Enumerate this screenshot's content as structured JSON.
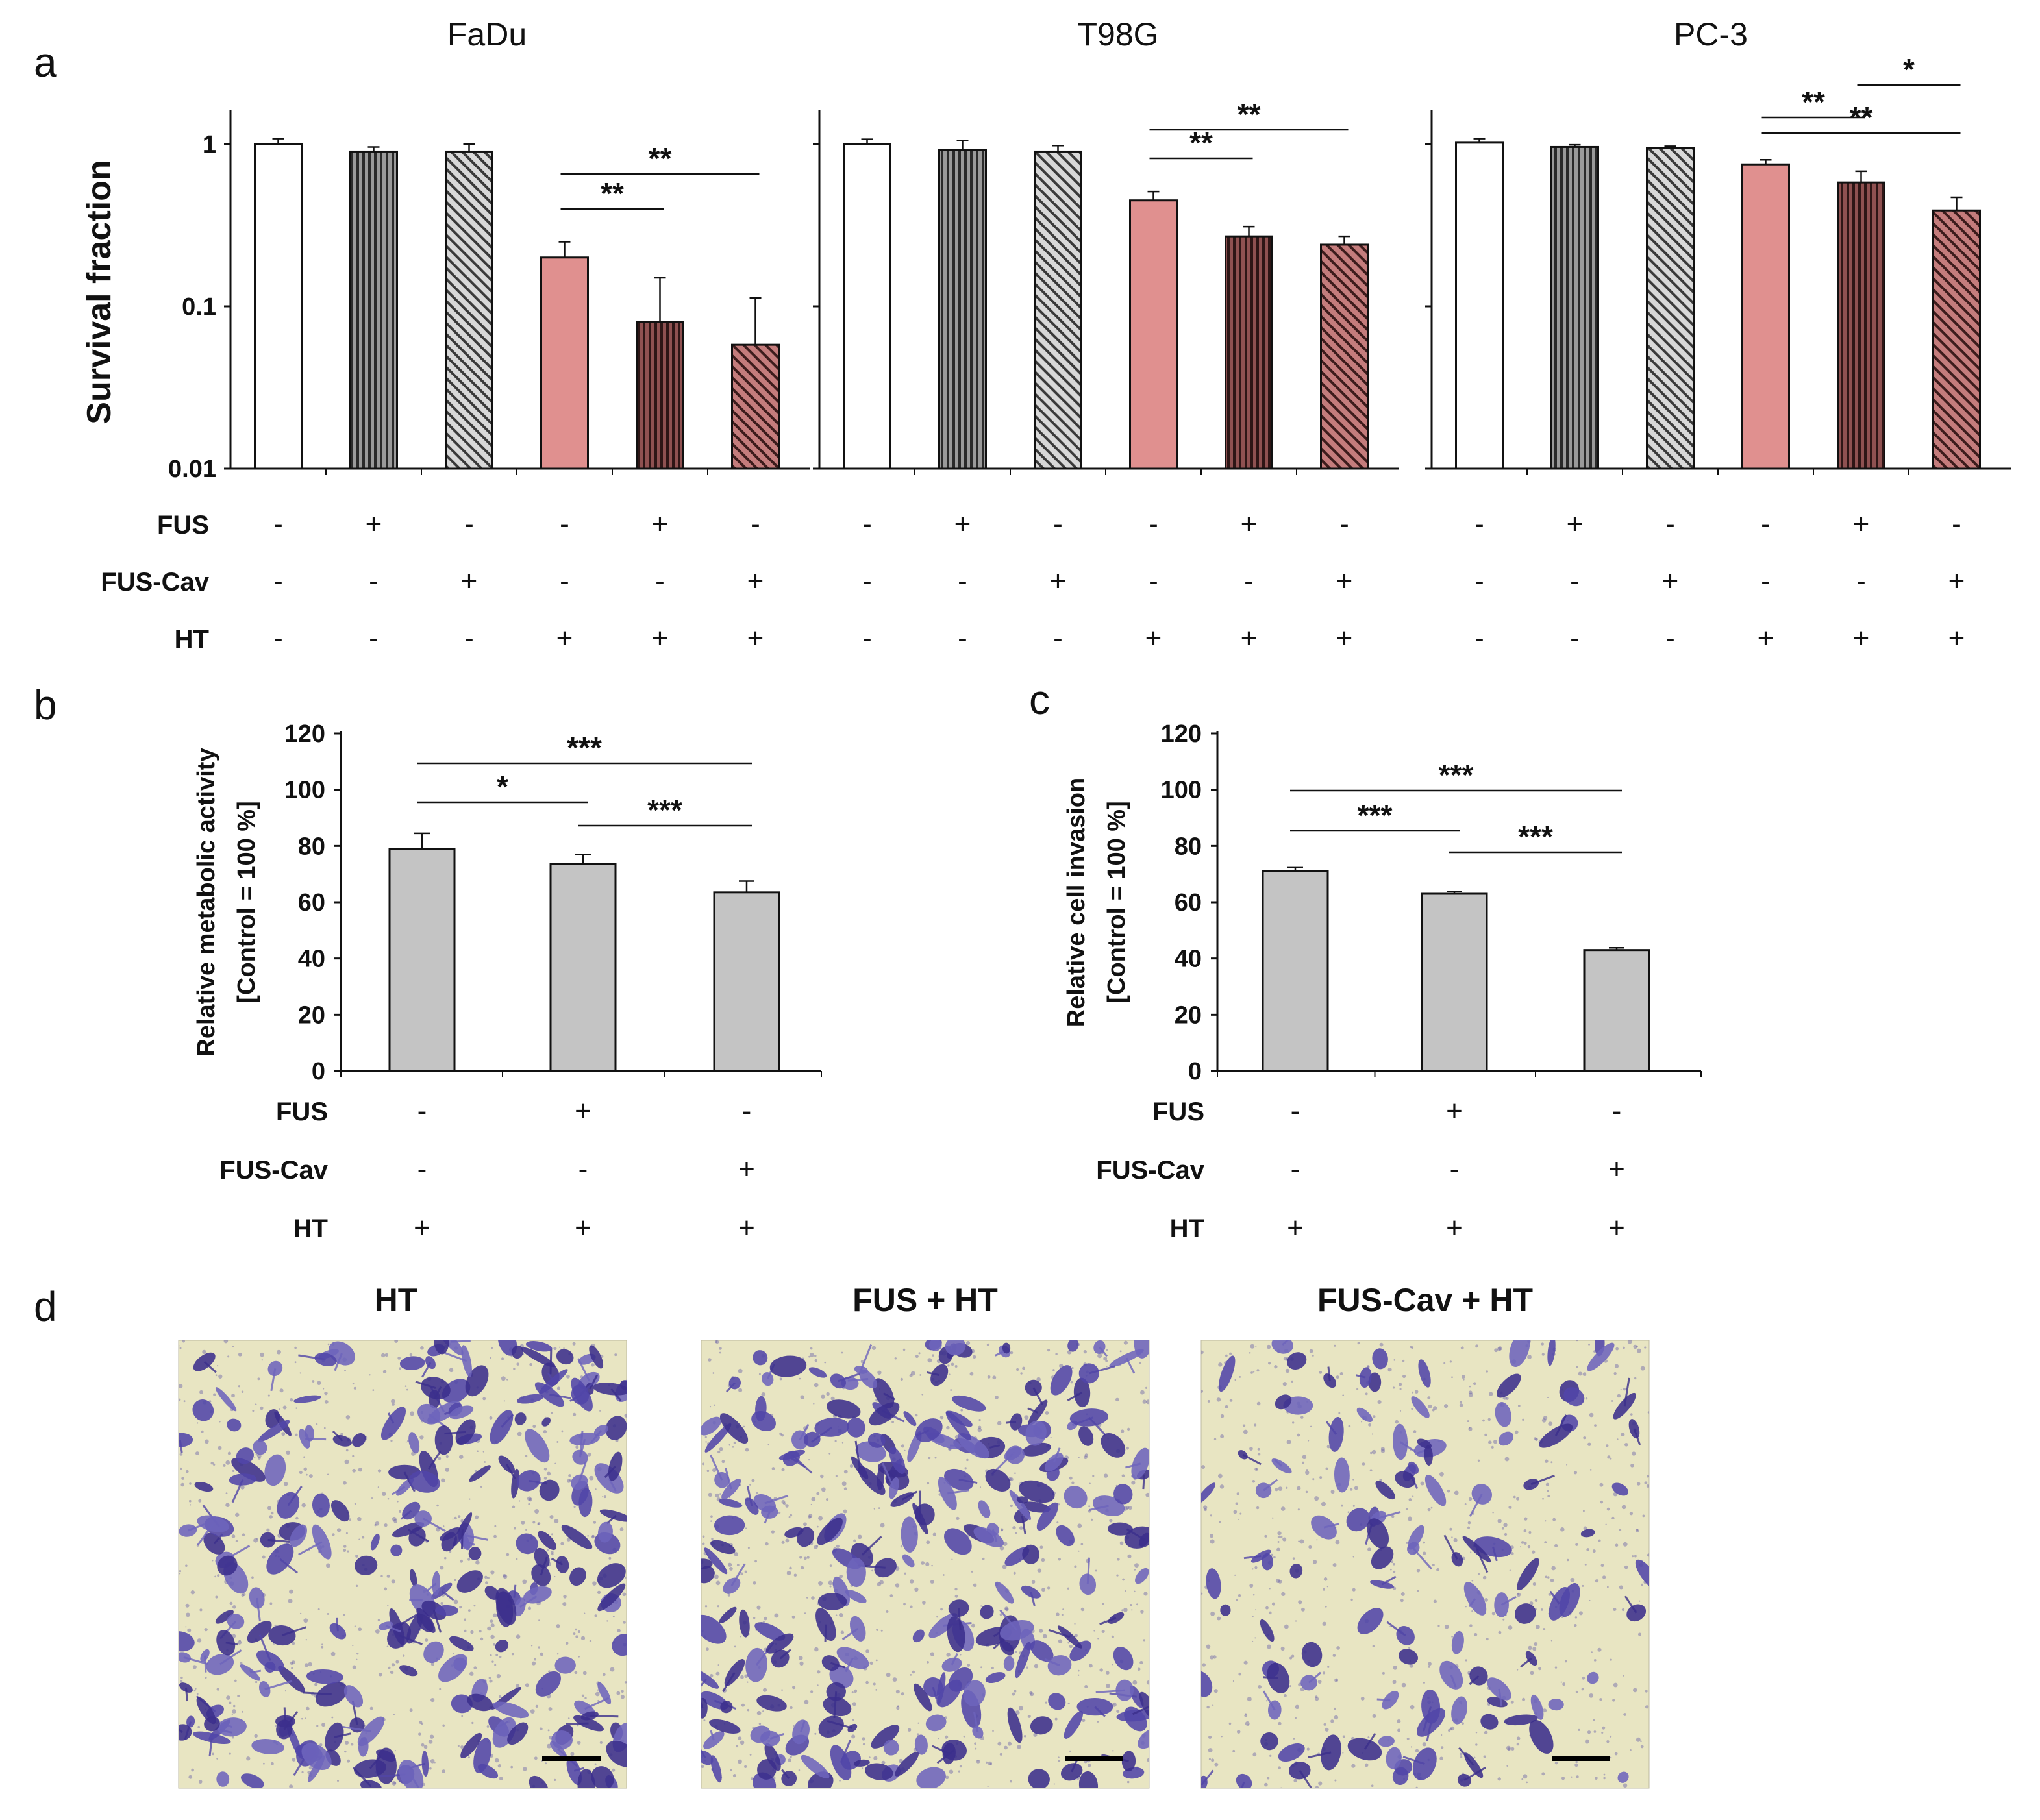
{
  "panel_labels": {
    "a": "a",
    "b": "b",
    "c": "c",
    "d": "d"
  },
  "condition_labels": {
    "fus": "FUS",
    "fus_cav": "FUS-Cav",
    "ht": "HT"
  },
  "colors": {
    "white_bar": "#ffffff",
    "gray_bar": "#c4c4c4",
    "dark_gray_bar": "#9c9c9c",
    "pink_bar": "#e0908f",
    "maroon_bar": "#6e3a3a",
    "pink_hatch_bar": "#b36868",
    "cell_stain": "#4a3fa0",
    "background_photo": "#e9e6c4"
  },
  "chart_data": [
    {
      "id": "a-fadu",
      "type": "bar",
      "title": "FaDu",
      "ylabel": "Survival fraction",
      "yscale": "log",
      "ylim": [
        0.01,
        1.5
      ],
      "yticks": [
        "1",
        "0.1",
        "0.01"
      ],
      "categories": [
        "1",
        "2",
        "3",
        "4",
        "5",
        "6"
      ],
      "values": [
        1.0,
        0.9,
        0.9,
        0.2,
        0.08,
        0.058
      ],
      "errors": [
        0.08,
        0.06,
        0.1,
        0.05,
        0.07,
        0.055
      ],
      "styles": [
        "white",
        "vstripe-gray",
        "diag-gray",
        "pink",
        "vstripe-maroon",
        "diag-pink"
      ],
      "conditions": {
        "FUS": [
          "-",
          "+",
          "-",
          "-",
          "+",
          "-"
        ],
        "FUS-Cav": [
          "-",
          "-",
          "+",
          "-",
          "-",
          "+"
        ],
        "HT": [
          "-",
          "-",
          "-",
          "+",
          "+",
          "+"
        ]
      },
      "significance": [
        {
          "from": 4,
          "to": 5,
          "label": "**"
        },
        {
          "from": 4,
          "to": 6,
          "label": "**"
        }
      ]
    },
    {
      "id": "a-t98g",
      "type": "bar",
      "title": "T98G",
      "yscale": "log",
      "ylim": [
        0.01,
        1.5
      ],
      "categories": [
        "1",
        "2",
        "3",
        "4",
        "5",
        "6"
      ],
      "values": [
        1.0,
        0.92,
        0.9,
        0.45,
        0.27,
        0.24
      ],
      "errors": [
        0.07,
        0.13,
        0.08,
        0.06,
        0.04,
        0.03
      ],
      "styles": [
        "white",
        "vstripe-gray",
        "diag-gray",
        "pink",
        "vstripe-maroon",
        "diag-pink"
      ],
      "conditions": {
        "FUS": [
          "-",
          "+",
          "-",
          "-",
          "+",
          "-"
        ],
        "FUS-Cav": [
          "-",
          "-",
          "+",
          "-",
          "-",
          "+"
        ],
        "HT": [
          "-",
          "-",
          "-",
          "+",
          "+",
          "+"
        ]
      },
      "significance": [
        {
          "from": 4,
          "to": 5,
          "label": "**"
        },
        {
          "from": 4,
          "to": 6,
          "label": "**"
        }
      ]
    },
    {
      "id": "a-pc3",
      "type": "bar",
      "title": "PC-3",
      "yscale": "log",
      "ylim": [
        0.01,
        1.5
      ],
      "categories": [
        "1",
        "2",
        "3",
        "4",
        "5",
        "6"
      ],
      "values": [
        1.02,
        0.96,
        0.95,
        0.75,
        0.58,
        0.39
      ],
      "errors": [
        0.06,
        0.03,
        0.02,
        0.05,
        0.1,
        0.08
      ],
      "styles": [
        "white",
        "vstripe-gray",
        "diag-gray",
        "pink",
        "vstripe-maroon",
        "diag-pink"
      ],
      "conditions": {
        "FUS": [
          "-",
          "+",
          "-",
          "-",
          "+",
          "-"
        ],
        "FUS-Cav": [
          "-",
          "-",
          "+",
          "-",
          "-",
          "+"
        ],
        "HT": [
          "-",
          "-",
          "-",
          "+",
          "+",
          "+"
        ]
      },
      "significance": [
        {
          "from": 4,
          "to": 5,
          "label": "**"
        },
        {
          "from": 5,
          "to": 6,
          "label": "*"
        },
        {
          "from": 4,
          "to": 6,
          "label": "**"
        }
      ]
    },
    {
      "id": "b-metabolic",
      "type": "bar",
      "ylabel": "Relative metabolic activity",
      "ylabel2": "[Control = 100 %]",
      "ylim": [
        0,
        120
      ],
      "yticks": [
        "0",
        "20",
        "40",
        "60",
        "80",
        "100",
        "120"
      ],
      "categories": [
        "1",
        "2",
        "3"
      ],
      "values": [
        79,
        73.5,
        63.5
      ],
      "errors": [
        5.5,
        3.5,
        4
      ],
      "conditions": {
        "FUS": [
          "-",
          "+",
          "-"
        ],
        "FUS-Cav": [
          "-",
          "-",
          "+"
        ],
        "HT": [
          "+",
          "+",
          "+"
        ]
      },
      "significance": [
        {
          "from": 1,
          "to": 2,
          "label": "*"
        },
        {
          "from": 2,
          "to": 3,
          "label": "***"
        },
        {
          "from": 1,
          "to": 3,
          "label": "***"
        }
      ]
    },
    {
      "id": "c-invasion",
      "type": "bar",
      "ylabel": "Relative cell invasion",
      "ylabel2": "[Control = 100 %]",
      "ylim": [
        0,
        120
      ],
      "yticks": [
        "0",
        "20",
        "40",
        "60",
        "80",
        "100",
        "120"
      ],
      "categories": [
        "1",
        "2",
        "3"
      ],
      "values": [
        71,
        63,
        43
      ],
      "errors": [
        1.5,
        0.8,
        0.8
      ],
      "conditions": {
        "FUS": [
          "-",
          "+",
          "-"
        ],
        "FUS-Cav": [
          "-",
          "-",
          "+"
        ],
        "HT": [
          "+",
          "+",
          "+"
        ]
      },
      "significance": [
        {
          "from": 1,
          "to": 2,
          "label": "***"
        },
        {
          "from": 2,
          "to": 3,
          "label": "***"
        },
        {
          "from": 1,
          "to": 3,
          "label": "***"
        }
      ]
    }
  ],
  "photos": [
    {
      "title": "HT",
      "density": "high"
    },
    {
      "title": "FUS + HT",
      "density": "high"
    },
    {
      "title": "FUS-Cav + HT",
      "density": "low"
    }
  ]
}
